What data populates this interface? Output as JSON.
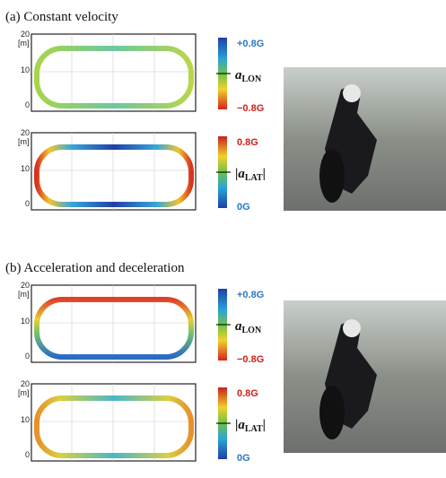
{
  "panels": [
    {
      "title": "(a) Constant velocity",
      "plots": [
        {
          "y_unit": "[m]",
          "yticks": [
            "20",
            "10",
            "0"
          ],
          "colorbar": {
            "top": "+0.8G",
            "symbol": "a",
            "subscript": "LON",
            "bottom": "−0.8G"
          }
        },
        {
          "y_unit": "[m]",
          "yticks": [
            "20",
            "10",
            "0"
          ],
          "colorbar": {
            "top": "0.8G",
            "prefix": "|",
            "symbol": "a",
            "subscript": "LAT",
            "suffix": "|",
            "bottom": "0G"
          }
        }
      ]
    },
    {
      "title": "(b) Acceleration and deceleration",
      "plots": [
        {
          "y_unit": "[m]",
          "yticks": [
            "20",
            "10",
            "0"
          ],
          "colorbar": {
            "top": "+0.8G",
            "symbol": "a",
            "subscript": "LON",
            "bottom": "−0.8G"
          }
        },
        {
          "y_unit": "[m]",
          "yticks": [
            "20",
            "10",
            "0"
          ],
          "colorbar": {
            "top": "0.8G",
            "prefix": "|",
            "symbol": "a",
            "subscript": "LAT",
            "suffix": "|",
            "bottom": "0G"
          }
        }
      ]
    }
  ]
}
